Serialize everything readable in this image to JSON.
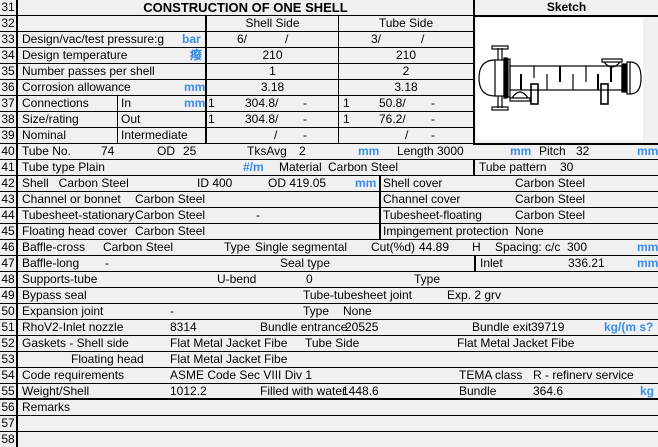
{
  "row_numbers": [
    "31",
    "32",
    "33",
    "34",
    "35",
    "36",
    "37",
    "38",
    "39",
    "40",
    "41",
    "42",
    "43",
    "44",
    "45",
    "46",
    "47",
    "48",
    "49",
    "50",
    "51",
    "52",
    "53",
    "54",
    "55",
    "56",
    "57",
    "58"
  ],
  "title": "CONSTRUCTION OF ONE SHELL",
  "sketch_title": "Sketch",
  "colors": {
    "unit": "#3a8ee6",
    "background": "#f0f0f0"
  },
  "headers": {
    "shell_side": "Shell Side",
    "tube_side": "Tube Side"
  },
  "r33": {
    "label": "Design/vac/test pressure:g",
    "unit": "bar",
    "shell_a": "6/",
    "shell_b": "/",
    "tube_a": "3/",
    "tube_b": "/"
  },
  "r34": {
    "label": "Design temperature",
    "unit": "癈",
    "shell": "210",
    "tube": "210"
  },
  "r35": {
    "label": "Number passes per shell",
    "shell": "1",
    "tube": "2"
  },
  "r36": {
    "label": "Corrosion allowance",
    "unit": "mm",
    "shell": "3.18",
    "tube": "3.18"
  },
  "r37": {
    "label": "Connections",
    "sub": "In",
    "unit": "mm",
    "shell_n": "1",
    "shell_size": "304.8/",
    "shell_rating": "-",
    "tube_n": "1",
    "tube_size": "50.8/",
    "tube_rating": "-"
  },
  "r38": {
    "label": "Size/rating",
    "sub": "Out",
    "shell_n": "1",
    "shell_size": "304.8/",
    "shell_rating": "-",
    "tube_n": "1",
    "tube_size": "76.2/",
    "tube_rating": "-"
  },
  "r39": {
    "label": "Nominal",
    "sub": "Intermediate",
    "shell_size": "/",
    "shell_rating": "-",
    "tube_size": "/",
    "tube_rating": "-"
  },
  "r40": {
    "tube_no_label": "Tube No.",
    "tube_no": "74",
    "od_label": "OD",
    "od": "25",
    "tks_label": "TksAvg",
    "tks": "2",
    "unit1": "mm",
    "length_label": "Length",
    "length": "3000",
    "unit2": "mm",
    "pitch_label": "Pitch",
    "pitch": "32",
    "unit3": "mm"
  },
  "r41": {
    "label": "Tube type  Plain",
    "unit": "#/m",
    "material_label": "Material",
    "material": "Carbon Steel",
    "pattern_label": "Tube pattern",
    "pattern": "30"
  },
  "r42": {
    "label": "Shell   Carbon Steel",
    "id": "ID 400",
    "od": "OD 419.05",
    "unit": "mm",
    "right_label": "Shell cover",
    "right_value": "Carbon Steel"
  },
  "r43": {
    "label": "Channel or bonnet",
    "value": "Carbon Steel",
    "right_label": "Channel cover",
    "right_value": "Carbon Steel"
  },
  "r44": {
    "label": "Tubesheet-stationary",
    "value": "Carbon Steel",
    "extra": "-",
    "right_label": "Tubesheet-floating",
    "right_value": "Carbon Steel"
  },
  "r45": {
    "label": "Floating head cover",
    "value": "Carbon Steel",
    "right_label": "Impingement protection",
    "right_value": "None"
  },
  "r46": {
    "label": "Baffle-cross",
    "value": "Carbon Steel",
    "type_label": "Type",
    "type": "Single segmental",
    "cut_label": "Cut(%d)",
    "cut": "44.89",
    "orient": "H",
    "spacing_label": "Spacing: c/c",
    "spacing": "300",
    "unit": "mm"
  },
  "r47": {
    "label": "Baffle-long",
    "value": "-",
    "seal_label": "Seal type",
    "inlet_label": "Inlet",
    "inlet": "336.21",
    "unit": "mm"
  },
  "r48": {
    "label": "Supports-tube",
    "ubend_label": "U-bend",
    "ubend": "0",
    "type_label": "Type"
  },
  "r49": {
    "label": "Bypass seal",
    "joint_label": "Tube-tubesheet joint",
    "joint": "Exp. 2 grv"
  },
  "r50": {
    "label": "Expansion joint",
    "value": "-",
    "type_label": "Type",
    "type": "None"
  },
  "r51": {
    "label": "RhoV2-Inlet nozzle",
    "value": "8314",
    "entrance_label": "Bundle entrance",
    "entrance": "20525",
    "exit_label": "Bundle exit",
    "exit": "39719",
    "unit": "kg/(m s?"
  },
  "r52": {
    "label": "Gaskets - Shell side",
    "value": "Flat Metal Jacket Fibe",
    "tube_label": "Tube Side",
    "tube_value": "Flat Metal Jacket Fibe"
  },
  "r53": {
    "label": "Floating head",
    "value": "Flat Metal Jacket Fibe"
  },
  "r54": {
    "label": "Code requirements",
    "value": "ASME Code Sec VIII Div 1",
    "tema_label": "TEMA class",
    "tema": "R - refinerv service"
  },
  "r55": {
    "label": "Weight/Shell",
    "value": "1012.2",
    "water_label": "Filled with water",
    "water": "1448.6",
    "bundle_label": "Bundle",
    "bundle": "364.6",
    "unit": "kg"
  },
  "r56": {
    "label": "Remarks"
  }
}
